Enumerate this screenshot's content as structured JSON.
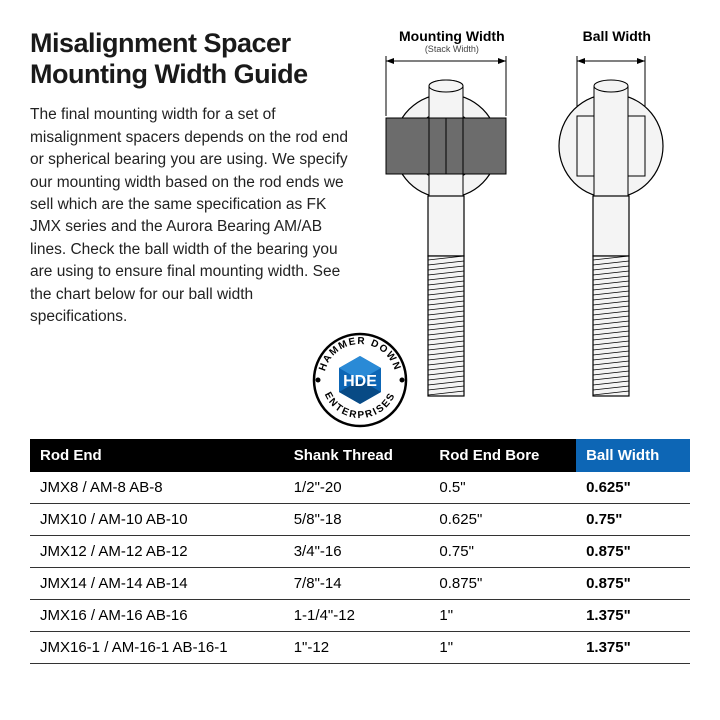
{
  "title": "Misalignment Spacer Mounting Width Guide",
  "body": "The final mounting width for a set of misalignment spacers depends on the rod end or spherical bearing you are using. We specify our mounting width based on the rod ends we sell which are the same specification as FK JMX series and the Aurora Bearing AM/AB lines. Check the ball width of the bearing you are using to ensure final mounting width. See the chart below for our ball width specifications.",
  "labels": {
    "mounting": "Mounting Width",
    "mounting_sub": "(Stack Width)",
    "ball": "Ball Width"
  },
  "logo": {
    "top": "HAMMER DOWN",
    "bottom": "ENTERPRISES",
    "center": "HDE"
  },
  "diagram": {
    "stroke": "#000000",
    "fill_light": "#f4f4f4",
    "spacer_fill": "#6c6c6c"
  },
  "table": {
    "headers": [
      "Rod End",
      "Shank Thread",
      "Rod End Bore",
      "Ball Width"
    ],
    "header_bg": "#000000",
    "header_bg_accent": "#0d66b5",
    "header_fg": "#ffffff",
    "row_border": "#333333",
    "rows": [
      {
        "rod_end": "JMX8 / AM-8 AB-8",
        "shank": "1/2\"-20",
        "bore": "0.5\"",
        "ball": "0.625\""
      },
      {
        "rod_end": "JMX10 / AM-10 AB-10",
        "shank": "5/8\"-18",
        "bore": "0.625\"",
        "ball": "0.75\""
      },
      {
        "rod_end": "JMX12 / AM-12 AB-12",
        "shank": "3/4\"-16",
        "bore": "0.75\"",
        "ball": "0.875\""
      },
      {
        "rod_end": "JMX14 / AM-14 AB-14",
        "shank": "7/8\"-14",
        "bore": "0.875\"",
        "ball": "0.875\""
      },
      {
        "rod_end": "JMX16 / AM-16 AB-16",
        "shank": "1-1/4\"-12",
        "bore": "1\"",
        "ball": "1.375\""
      },
      {
        "rod_end": "JMX16-1 / AM-16-1 AB-16-1",
        "shank": "1\"-12",
        "bore": "1\"",
        "ball": "1.375\""
      }
    ]
  }
}
